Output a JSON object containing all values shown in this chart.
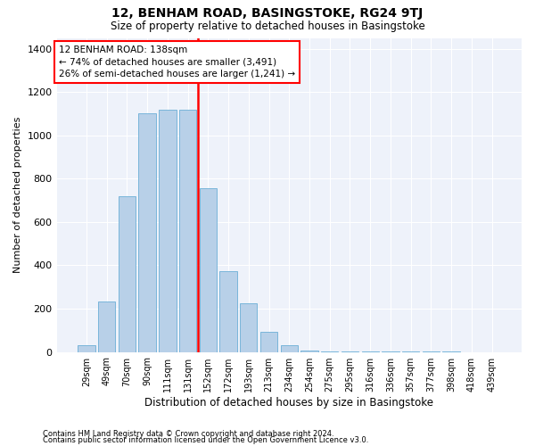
{
  "title": "12, BENHAM ROAD, BASINGSTOKE, RG24 9TJ",
  "subtitle": "Size of property relative to detached houses in Basingstoke",
  "xlabel": "Distribution of detached houses by size in Basingstoke",
  "ylabel": "Number of detached properties",
  "bar_labels": [
    "29sqm",
    "49sqm",
    "70sqm",
    "90sqm",
    "111sqm",
    "131sqm",
    "152sqm",
    "172sqm",
    "193sqm",
    "213sqm",
    "234sqm",
    "254sqm",
    "275sqm",
    "295sqm",
    "316sqm",
    "336sqm",
    "357sqm",
    "377sqm",
    "398sqm",
    "418sqm",
    "439sqm"
  ],
  "bar_values": [
    30,
    235,
    720,
    1100,
    1120,
    1120,
    755,
    375,
    225,
    95,
    30,
    5,
    2,
    1,
    1,
    1,
    1,
    1,
    1,
    0,
    0
  ],
  "bar_color": "#b8d0e8",
  "bar_edgecolor": "#6aaed6",
  "vline_color": "red",
  "annotation_text": "12 BENHAM ROAD: 138sqm\n← 74% of detached houses are smaller (3,491)\n26% of semi-detached houses are larger (1,241) →",
  "footer_line1": "Contains HM Land Registry data © Crown copyright and database right 2024.",
  "footer_line2": "Contains public sector information licensed under the Open Government Licence v3.0.",
  "ylim_max": 1450,
  "background_color": "#eef2fa",
  "grid_color": "#c8d0e8",
  "title_fontsize": 10,
  "subtitle_fontsize": 8.5,
  "ylabel_fontsize": 8,
  "xlabel_fontsize": 8.5,
  "tick_fontsize": 7,
  "footer_fontsize": 6,
  "annot_fontsize": 7.5
}
